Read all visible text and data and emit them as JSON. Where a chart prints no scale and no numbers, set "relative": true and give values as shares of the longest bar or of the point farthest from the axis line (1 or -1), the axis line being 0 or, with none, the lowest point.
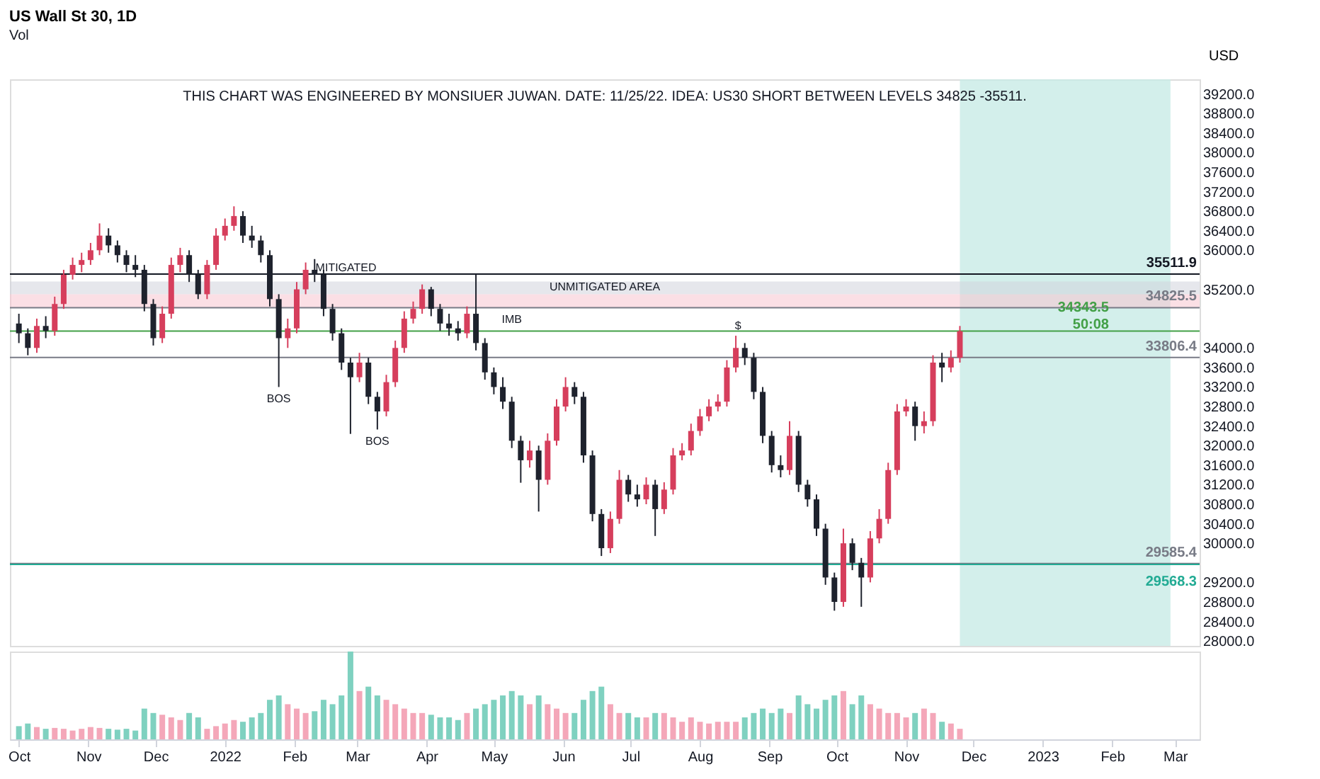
{
  "chart_data": [
    {
      "type": "candlestick",
      "title": "US Wall St 30, 1D",
      "subtitle": "Vol",
      "ylabel": "USD",
      "x": [
        "2021-10-01",
        "2021-10-05",
        "2021-10-09",
        "2021-10-13",
        "2021-10-17",
        "2021-10-21",
        "2021-10-25",
        "2021-10-29",
        "2021-11-02",
        "2021-11-06",
        "2021-11-10",
        "2021-11-14",
        "2021-11-18",
        "2021-11-22",
        "2021-11-26",
        "2021-11-30",
        "2021-12-04",
        "2021-12-08",
        "2021-12-12",
        "2021-12-16",
        "2021-12-20",
        "2021-12-24",
        "2021-12-28",
        "2022-01-01",
        "2022-01-05",
        "2022-01-09",
        "2022-01-13",
        "2022-01-17",
        "2022-01-21",
        "2022-01-25",
        "2022-01-29",
        "2022-02-02",
        "2022-02-06",
        "2022-02-10",
        "2022-02-14",
        "2022-02-18",
        "2022-02-22",
        "2022-02-26",
        "2022-03-02",
        "2022-03-06",
        "2022-03-10",
        "2022-03-14",
        "2022-03-18",
        "2022-03-22",
        "2022-03-26",
        "2022-03-30",
        "2022-04-03",
        "2022-04-07",
        "2022-04-11",
        "2022-04-15",
        "2022-04-19",
        "2022-04-23",
        "2022-04-27",
        "2022-05-01",
        "2022-05-05",
        "2022-05-09",
        "2022-05-13",
        "2022-05-17",
        "2022-05-21",
        "2022-05-25",
        "2022-05-29",
        "2022-06-02",
        "2022-06-06",
        "2022-06-10",
        "2022-06-14",
        "2022-06-18",
        "2022-06-22",
        "2022-06-26",
        "2022-06-30",
        "2022-07-04",
        "2022-07-08",
        "2022-07-12",
        "2022-07-16",
        "2022-07-20",
        "2022-07-24",
        "2022-07-28",
        "2022-08-01",
        "2022-08-05",
        "2022-08-09",
        "2022-08-13",
        "2022-08-17",
        "2022-08-21",
        "2022-08-25",
        "2022-08-29",
        "2022-09-02",
        "2022-09-06",
        "2022-09-10",
        "2022-09-14",
        "2022-09-18",
        "2022-09-22",
        "2022-09-26",
        "2022-09-30",
        "2022-10-04",
        "2022-10-08",
        "2022-10-12",
        "2022-10-16",
        "2022-10-20",
        "2022-10-24",
        "2022-10-28",
        "2022-11-01",
        "2022-11-05",
        "2022-11-09",
        "2022-11-13",
        "2022-11-17",
        "2022-11-21",
        "2022-11-25"
      ],
      "ohlc": [
        [
          34500,
          34700,
          34100,
          34300
        ],
        [
          34300,
          34400,
          33850,
          34000
        ],
        [
          34000,
          34600,
          33900,
          34450
        ],
        [
          34450,
          34650,
          34200,
          34350
        ],
        [
          34350,
          35050,
          34250,
          34900
        ],
        [
          34900,
          35600,
          34800,
          35500
        ],
        [
          35500,
          35850,
          35400,
          35700
        ],
        [
          35700,
          35950,
          35550,
          35800
        ],
        [
          35800,
          36150,
          35700,
          36000
        ],
        [
          36000,
          36550,
          35900,
          36300
        ],
        [
          36300,
          36450,
          35950,
          36100
        ],
        [
          36100,
          36200,
          35750,
          35900
        ],
        [
          35900,
          36000,
          35550,
          35700
        ],
        [
          35700,
          35900,
          35450,
          35600
        ],
        [
          35600,
          35700,
          34750,
          34900
        ],
        [
          34900,
          35000,
          34050,
          34200
        ],
        [
          34200,
          34850,
          34100,
          34700
        ],
        [
          34700,
          35850,
          34600,
          35700
        ],
        [
          35700,
          36050,
          35550,
          35900
        ],
        [
          35900,
          36000,
          35350,
          35500
        ],
        [
          35500,
          35600,
          35000,
          35100
        ],
        [
          35100,
          35800,
          35000,
          35700
        ],
        [
          35700,
          36450,
          35600,
          36300
        ],
        [
          36300,
          36650,
          36200,
          36500
        ],
        [
          36500,
          36900,
          36400,
          36700
        ],
        [
          36700,
          36800,
          36150,
          36300
        ],
        [
          36300,
          36500,
          36050,
          36200
        ],
        [
          36200,
          36300,
          35750,
          35900
        ],
        [
          35900,
          36000,
          34850,
          35000
        ],
        [
          35000,
          35100,
          33200,
          34200
        ],
        [
          34200,
          34600,
          34000,
          34400
        ],
        [
          34400,
          35350,
          34300,
          35200
        ],
        [
          35200,
          35750,
          35100,
          35600
        ],
        [
          35600,
          35820,
          35350,
          35500
        ],
        [
          35500,
          35600,
          34650,
          34800
        ],
        [
          34800,
          34900,
          34150,
          34300
        ],
        [
          34300,
          34400,
          33550,
          33700
        ],
        [
          33700,
          33800,
          32240,
          33400
        ],
        [
          33400,
          33900,
          33300,
          33700
        ],
        [
          33700,
          33800,
          32850,
          33000
        ],
        [
          33000,
          33100,
          32330,
          32700
        ],
        [
          32700,
          33450,
          32600,
          33300
        ],
        [
          33300,
          34150,
          33200,
          34000
        ],
        [
          34000,
          34750,
          33900,
          34600
        ],
        [
          34600,
          34950,
          34500,
          34800
        ],
        [
          34800,
          35300,
          34700,
          35200
        ],
        [
          35200,
          35250,
          34650,
          34800
        ],
        [
          34800,
          34900,
          34350,
          34500
        ],
        [
          34500,
          34700,
          34250,
          34400
        ],
        [
          34400,
          34550,
          34150,
          34300
        ],
        [
          34300,
          34850,
          34200,
          34700
        ],
        [
          34700,
          35511.9,
          33950,
          34100
        ],
        [
          34100,
          34200,
          33350,
          33500
        ],
        [
          33500,
          33600,
          33050,
          33200
        ],
        [
          33200,
          33400,
          32750,
          32900
        ],
        [
          32900,
          33000,
          31950,
          32100
        ],
        [
          32100,
          32200,
          31240,
          31700
        ],
        [
          31700,
          32100,
          31550,
          31900
        ],
        [
          31900,
          32000,
          30650,
          31300
        ],
        [
          31300,
          32250,
          31200,
          32100
        ],
        [
          32100,
          32950,
          32000,
          32800
        ],
        [
          32800,
          33400,
          32700,
          33200
        ],
        [
          33200,
          33300,
          32850,
          33000
        ],
        [
          33000,
          33100,
          31650,
          31800
        ],
        [
          31800,
          31900,
          30450,
          30600
        ],
        [
          30600,
          30700,
          29740,
          29900
        ],
        [
          29900,
          30650,
          29800,
          30500
        ],
        [
          30500,
          31500,
          30400,
          31300
        ],
        [
          31300,
          31400,
          30850,
          31000
        ],
        [
          31000,
          31200,
          30750,
          30900
        ],
        [
          30900,
          31350,
          30800,
          31200
        ],
        [
          31200,
          31300,
          30150,
          30700
        ],
        [
          30700,
          31250,
          30600,
          31100
        ],
        [
          31100,
          31950,
          31000,
          31800
        ],
        [
          31800,
          32050,
          31700,
          31900
        ],
        [
          31900,
          32450,
          31800,
          32300
        ],
        [
          32300,
          32750,
          32200,
          32600
        ],
        [
          32600,
          32950,
          32500,
          32800
        ],
        [
          32800,
          33050,
          32700,
          32900
        ],
        [
          32900,
          33750,
          32800,
          33600
        ],
        [
          33600,
          34250,
          33500,
          34000
        ],
        [
          34000,
          34100,
          33650,
          33800
        ],
        [
          33800,
          33900,
          32950,
          33100
        ],
        [
          33100,
          33200,
          32050,
          32200
        ],
        [
          32200,
          32300,
          31450,
          31600
        ],
        [
          31600,
          31800,
          31350,
          31500
        ],
        [
          31500,
          32500,
          31400,
          32200
        ],
        [
          32200,
          32300,
          31050,
          31200
        ],
        [
          31200,
          31300,
          30750,
          30900
        ],
        [
          30900,
          31000,
          30150,
          30300
        ],
        [
          30300,
          30400,
          29150,
          29300
        ],
        [
          29300,
          29400,
          28620,
          28800
        ],
        [
          28800,
          30300,
          28700,
          30000
        ],
        [
          30000,
          30100,
          29450,
          29600
        ],
        [
          29600,
          29700,
          28700,
          29300
        ],
        [
          29300,
          30250,
          29200,
          30100
        ],
        [
          30100,
          30700,
          30000,
          30500
        ],
        [
          30500,
          31650,
          30400,
          31500
        ],
        [
          31500,
          32850,
          31400,
          32700
        ],
        [
          32700,
          32950,
          32600,
          32800
        ],
        [
          32800,
          32900,
          32100,
          32400
        ],
        [
          32400,
          32700,
          32250,
          32500
        ],
        [
          32500,
          33850,
          32400,
          33700
        ],
        [
          33700,
          33900,
          33300,
          33600
        ],
        [
          33600,
          33950,
          33500,
          33800
        ],
        [
          33800,
          34450,
          33700,
          34343.5
        ]
      ],
      "colors": [
        "#1e222d",
        "#1e222d",
        "#d63e5c",
        "#1e222d",
        "#d63e5c",
        "#d63e5c",
        "#d63e5c",
        "#d63e5c",
        "#d63e5c",
        "#d63e5c",
        "#1e222d",
        "#1e222d",
        "#1e222d",
        "#1e222d",
        "#1e222d",
        "#1e222d",
        "#d63e5c",
        "#d63e5c",
        "#d63e5c",
        "#1e222d",
        "#1e222d",
        "#d63e5c",
        "#d63e5c",
        "#d63e5c",
        "#d63e5c",
        "#1e222d",
        "#1e222d",
        "#1e222d",
        "#1e222d",
        "#1e222d",
        "#d63e5c",
        "#d63e5c",
        "#d63e5c",
        "#1e222d",
        "#1e222d",
        "#1e222d",
        "#1e222d",
        "#1e222d",
        "#d63e5c",
        "#1e222d",
        "#1e222d",
        "#d63e5c",
        "#d63e5c",
        "#d63e5c",
        "#d63e5c",
        "#d63e5c",
        "#1e222d",
        "#1e222d",
        "#1e222d",
        "#1e222d",
        "#d63e5c",
        "#1e222d",
        "#1e222d",
        "#1e222d",
        "#1e222d",
        "#1e222d",
        "#1e222d",
        "#d63e5c",
        "#1e222d",
        "#d63e5c",
        "#d63e5c",
        "#d63e5c",
        "#1e222d",
        "#1e222d",
        "#1e222d",
        "#1e222d",
        "#d63e5c",
        "#d63e5c",
        "#1e222d",
        "#1e222d",
        "#d63e5c",
        "#1e222d",
        "#d63e5c",
        "#d63e5c",
        "#d63e5c",
        "#d63e5c",
        "#d63e5c",
        "#d63e5c",
        "#d63e5c",
        "#d63e5c",
        "#d63e5c",
        "#1e222d",
        "#1e222d",
        "#1e222d",
        "#1e222d",
        "#1e222d",
        "#d63e5c",
        "#1e222d",
        "#1e222d",
        "#1e222d",
        "#1e222d",
        "#1e222d",
        "#d63e5c",
        "#1e222d",
        "#1e222d",
        "#d63e5c",
        "#d63e5c",
        "#d63e5c",
        "#d63e5c",
        "#d63e5c",
        "#1e222d",
        "#d63e5c",
        "#d63e5c",
        "#1e222d",
        "#d63e5c",
        "#d63e5c"
      ],
      "xlim": [
        "2021-09-27",
        "2023-03-12"
      ],
      "ylim": [
        27900,
        39500
      ],
      "yticks": [
        {
          "value": 28000,
          "label": "28000.0"
        },
        {
          "value": 28400,
          "label": "28400.0"
        },
        {
          "value": 28800,
          "label": "28800.0"
        },
        {
          "value": 29200,
          "label": "29200.0"
        },
        {
          "value": 30000,
          "label": "30000.0"
        },
        {
          "value": 30400,
          "label": "30400.0"
        },
        {
          "value": 30800,
          "label": "30800.0"
        },
        {
          "value": 31200,
          "label": "31200.0"
        },
        {
          "value": 31600,
          "label": "31600.0"
        },
        {
          "value": 32000,
          "label": "32000.0"
        },
        {
          "value": 32400,
          "label": "32400.0"
        },
        {
          "value": 32800,
          "label": "32800.0"
        },
        {
          "value": 33200,
          "label": "33200.0"
        },
        {
          "value": 33600,
          "label": "33600.0"
        },
        {
          "value": 34000,
          "label": "34000.0"
        },
        {
          "value": 35200,
          "label": "35200.0"
        },
        {
          "value": 36000,
          "label": "36000.0"
        },
        {
          "value": 36400,
          "label": "36400.0"
        },
        {
          "value": 36800,
          "label": "36800.0"
        },
        {
          "value": 37200,
          "label": "37200.0"
        },
        {
          "value": 37600,
          "label": "37600.0"
        },
        {
          "value": 38000,
          "label": "38000.0"
        },
        {
          "value": 38400,
          "label": "38400.0"
        },
        {
          "value": 38800,
          "label": "38800.0"
        },
        {
          "value": 39200,
          "label": "39200.0"
        }
      ],
      "tick_labels": "y",
      "grid": false,
      "bands": [
        {
          "axis": "x",
          "from": "2022-11-25",
          "to": "2023-02-27",
          "color": "#c8ebe6"
        },
        {
          "axis": "y",
          "from": 35100,
          "to": 35360,
          "label": "UNMITIGATED AREA",
          "color": "#d1d4dc"
        },
        {
          "axis": "y",
          "from": 34825.5,
          "to": 35100,
          "color": "#f8c4cf"
        }
      ],
      "ref_lines": [
        {
          "axis": "y",
          "value": 35511.9,
          "label": "35511.9",
          "color": "#131722"
        },
        {
          "axis": "y",
          "value": 34825.5,
          "label": "34825.5",
          "color": "#787b86"
        },
        {
          "axis": "y",
          "value": 34343.5,
          "label": "34343.5\n50:08",
          "color": "#43a047"
        },
        {
          "axis": "y",
          "value": 33806.4,
          "label": "33806.4",
          "color": "#787b86"
        },
        {
          "axis": "y",
          "value": 29585.4,
          "label": "29585.4",
          "color": "#787b86"
        },
        {
          "axis": "y",
          "value": 29568.3,
          "label": "29568.3",
          "color": "#22ab94"
        }
      ],
      "annotations": [
        "THIS CHART WAS ENGINEERED BY MONSIUER JUWAN. DATE: 11/25/22. IDEA: US30 SHORT BETWEEN LEVELS 34825 -35511.",
        {
          "text": "MITIGATED",
          "x": "2022-02-24",
          "y": 35450
        },
        {
          "text": "IMB",
          "x": "2022-05-09",
          "y": 34400
        },
        {
          "text": "BOS",
          "x": "2022-01-25",
          "y": 33200
        },
        {
          "text": "BOS",
          "x": "2022-03-10",
          "y": 32330
        },
        {
          "text": "$",
          "x": "2022-08-18",
          "y": 34270
        }
      ]
    },
    {
      "type": "bar",
      "relative": true,
      "x": [
        "2021-10-01",
        "2021-10-05",
        "2021-10-09",
        "2021-10-13",
        "2021-10-17",
        "2021-10-21",
        "2021-10-25",
        "2021-10-29",
        "2021-11-02",
        "2021-11-06",
        "2021-11-10",
        "2021-11-14",
        "2021-11-18",
        "2021-11-22",
        "2021-11-26",
        "2021-11-30",
        "2021-12-04",
        "2021-12-08",
        "2021-12-12",
        "2021-12-16",
        "2021-12-20",
        "2021-12-24",
        "2021-12-28",
        "2022-01-01",
        "2022-01-05",
        "2022-01-09",
        "2022-01-13",
        "2022-01-17",
        "2022-01-21",
        "2022-01-25",
        "2022-01-29",
        "2022-02-02",
        "2022-02-06",
        "2022-02-10",
        "2022-02-14",
        "2022-02-18",
        "2022-02-22",
        "2022-02-26",
        "2022-03-02",
        "2022-03-06",
        "2022-03-10",
        "2022-03-14",
        "2022-03-18",
        "2022-03-22",
        "2022-03-26",
        "2022-03-30",
        "2022-04-03",
        "2022-04-07",
        "2022-04-11",
        "2022-04-15",
        "2022-04-19",
        "2022-04-23",
        "2022-04-27",
        "2022-05-01",
        "2022-05-05",
        "2022-05-09",
        "2022-05-13",
        "2022-05-17",
        "2022-05-21",
        "2022-05-25",
        "2022-05-29",
        "2022-06-02",
        "2022-06-06",
        "2022-06-10",
        "2022-06-14",
        "2022-06-18",
        "2022-06-22",
        "2022-06-26",
        "2022-06-30",
        "2022-07-04",
        "2022-07-08",
        "2022-07-12",
        "2022-07-16",
        "2022-07-20",
        "2022-07-24",
        "2022-07-28",
        "2022-08-01",
        "2022-08-05",
        "2022-08-09",
        "2022-08-13",
        "2022-08-17",
        "2022-08-21",
        "2022-08-25",
        "2022-08-29",
        "2022-09-02",
        "2022-09-06",
        "2022-09-10",
        "2022-09-14",
        "2022-09-18",
        "2022-09-22",
        "2022-09-26",
        "2022-09-30",
        "2022-10-04",
        "2022-10-08",
        "2022-10-12",
        "2022-10-16",
        "2022-10-20",
        "2022-10-24",
        "2022-10-28",
        "2022-11-01",
        "2022-11-05",
        "2022-11-09",
        "2022-11-13",
        "2022-11-17",
        "2022-11-21",
        "2022-11-25"
      ],
      "values": [
        0.15,
        0.18,
        0.14,
        0.12,
        0.13,
        0.12,
        0.1,
        0.12,
        0.14,
        0.13,
        0.12,
        0.11,
        0.12,
        0.1,
        0.35,
        0.3,
        0.28,
        0.25,
        0.22,
        0.3,
        0.25,
        0.12,
        0.15,
        0.18,
        0.22,
        0.2,
        0.25,
        0.3,
        0.45,
        0.5,
        0.4,
        0.35,
        0.3,
        0.32,
        0.45,
        0.4,
        0.5,
        1.0,
        0.55,
        0.6,
        0.5,
        0.45,
        0.4,
        0.35,
        0.3,
        0.3,
        0.28,
        0.25,
        0.25,
        0.22,
        0.3,
        0.35,
        0.4,
        0.45,
        0.5,
        0.55,
        0.5,
        0.4,
        0.5,
        0.4,
        0.35,
        0.3,
        0.3,
        0.45,
        0.55,
        0.6,
        0.4,
        0.3,
        0.3,
        0.25,
        0.25,
        0.3,
        0.3,
        0.25,
        0.2,
        0.25,
        0.2,
        0.18,
        0.2,
        0.2,
        0.2,
        0.25,
        0.3,
        0.35,
        0.3,
        0.35,
        0.3,
        0.5,
        0.4,
        0.35,
        0.45,
        0.5,
        0.55,
        0.4,
        0.5,
        0.4,
        0.35,
        0.3,
        0.3,
        0.25,
        0.3,
        0.35,
        0.3,
        0.2,
        0.18,
        0.12
      ],
      "colors": [
        "#7fd1c0",
        "#7fd1c0",
        "#f4a7b9",
        "#7fd1c0",
        "#f4a7b9",
        "#f4a7b9",
        "#f4a7b9",
        "#f4a7b9",
        "#f4a7b9",
        "#f4a7b9",
        "#7fd1c0",
        "#7fd1c0",
        "#7fd1c0",
        "#7fd1c0",
        "#7fd1c0",
        "#7fd1c0",
        "#f4a7b9",
        "#f4a7b9",
        "#f4a7b9",
        "#7fd1c0",
        "#7fd1c0",
        "#f4a7b9",
        "#f4a7b9",
        "#f4a7b9",
        "#f4a7b9",
        "#7fd1c0",
        "#7fd1c0",
        "#7fd1c0",
        "#7fd1c0",
        "#7fd1c0",
        "#f4a7b9",
        "#f4a7b9",
        "#f4a7b9",
        "#7fd1c0",
        "#7fd1c0",
        "#7fd1c0",
        "#7fd1c0",
        "#7fd1c0",
        "#f4a7b9",
        "#7fd1c0",
        "#7fd1c0",
        "#f4a7b9",
        "#f4a7b9",
        "#f4a7b9",
        "#f4a7b9",
        "#f4a7b9",
        "#7fd1c0",
        "#7fd1c0",
        "#7fd1c0",
        "#7fd1c0",
        "#f4a7b9",
        "#7fd1c0",
        "#7fd1c0",
        "#7fd1c0",
        "#7fd1c0",
        "#7fd1c0",
        "#7fd1c0",
        "#f4a7b9",
        "#7fd1c0",
        "#f4a7b9",
        "#f4a7b9",
        "#f4a7b9",
        "#7fd1c0",
        "#7fd1c0",
        "#7fd1c0",
        "#7fd1c0",
        "#f4a7b9",
        "#f4a7b9",
        "#7fd1c0",
        "#7fd1c0",
        "#f4a7b9",
        "#7fd1c0",
        "#f4a7b9",
        "#f4a7b9",
        "#f4a7b9",
        "#f4a7b9",
        "#f4a7b9",
        "#f4a7b9",
        "#f4a7b9",
        "#f4a7b9",
        "#f4a7b9",
        "#7fd1c0",
        "#7fd1c0",
        "#7fd1c0",
        "#7fd1c0",
        "#7fd1c0",
        "#f4a7b9",
        "#7fd1c0",
        "#7fd1c0",
        "#7fd1c0",
        "#7fd1c0",
        "#7fd1c0",
        "#f4a7b9",
        "#7fd1c0",
        "#7fd1c0",
        "#f4a7b9",
        "#f4a7b9",
        "#f4a7b9",
        "#f4a7b9",
        "#f4a7b9",
        "#7fd1c0",
        "#f4a7b9",
        "#f4a7b9",
        "#7fd1c0",
        "#f4a7b9",
        "#f4a7b9"
      ],
      "xlim": [
        "2021-09-27",
        "2023-03-12"
      ],
      "xticks": [
        {
          "value": "2021-10-01",
          "label": "Oct"
        },
        {
          "value": "2021-11-01",
          "label": "Nov"
        },
        {
          "value": "2021-12-01",
          "label": "Dec"
        },
        {
          "value": "2022-01-01",
          "label": "2022"
        },
        {
          "value": "2022-02-01",
          "label": "Feb"
        },
        {
          "value": "2022-03-01",
          "label": "Mar"
        },
        {
          "value": "2022-04-01",
          "label": "Apr"
        },
        {
          "value": "2022-05-01",
          "label": "May"
        },
        {
          "value": "2022-06-01",
          "label": "Jun"
        },
        {
          "value": "2022-07-01",
          "label": "Jul"
        },
        {
          "value": "2022-08-01",
          "label": "Aug"
        },
        {
          "value": "2022-09-01",
          "label": "Sep"
        },
        {
          "value": "2022-10-01",
          "label": "Oct"
        },
        {
          "value": "2022-11-01",
          "label": "Nov"
        },
        {
          "value": "2022-12-01",
          "label": "Dec"
        },
        {
          "value": "2023-01-01",
          "label": "2023"
        },
        {
          "value": "2023-02-01",
          "label": "Feb"
        },
        {
          "value": "2023-03-01",
          "label": "Mar"
        }
      ],
      "tick_labels": "x",
      "grid": false
    }
  ]
}
